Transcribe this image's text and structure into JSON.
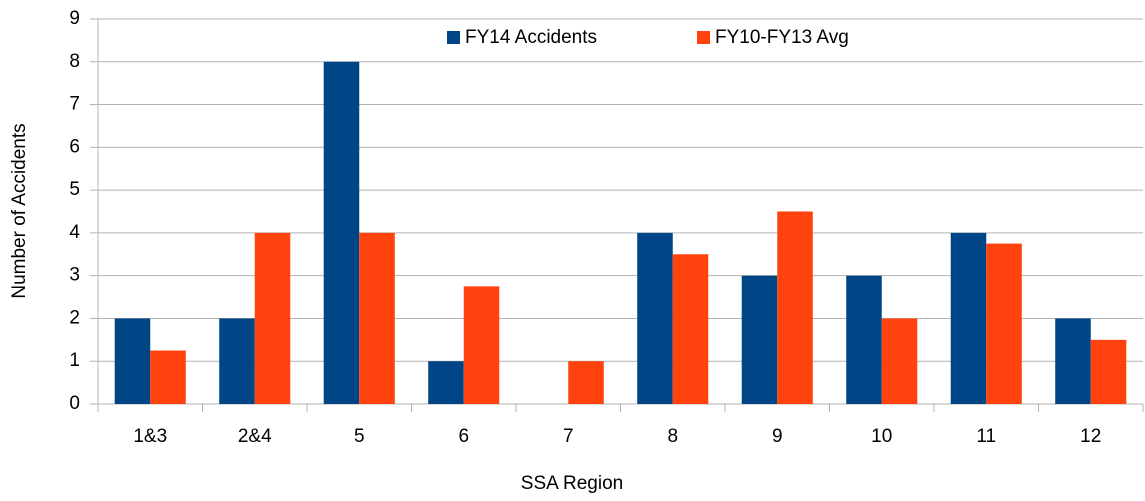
{
  "chart_data": {
    "type": "bar",
    "x_label": "SSA Region",
    "y_label": "Number of Accidents",
    "categories": [
      "1&3",
      "2&4",
      "5",
      "6",
      "7",
      "8",
      "9",
      "10",
      "11",
      "12"
    ],
    "series": [
      {
        "name": "FY14 Accidents",
        "color": "#004586",
        "values": [
          2,
          2,
          8,
          1,
          0,
          4,
          3,
          3,
          4,
          2
        ]
      },
      {
        "name": "FY10-FY13 Avg",
        "color": "#ff420e",
        "values": [
          1.25,
          4,
          4,
          2.75,
          1,
          3.5,
          4.5,
          2,
          3.75,
          1.5
        ]
      }
    ],
    "ylim": [
      0,
      9
    ],
    "yticks": [
      0,
      1,
      2,
      3,
      4,
      5,
      6,
      7,
      8,
      9
    ],
    "grid": true,
    "legend": "top"
  }
}
